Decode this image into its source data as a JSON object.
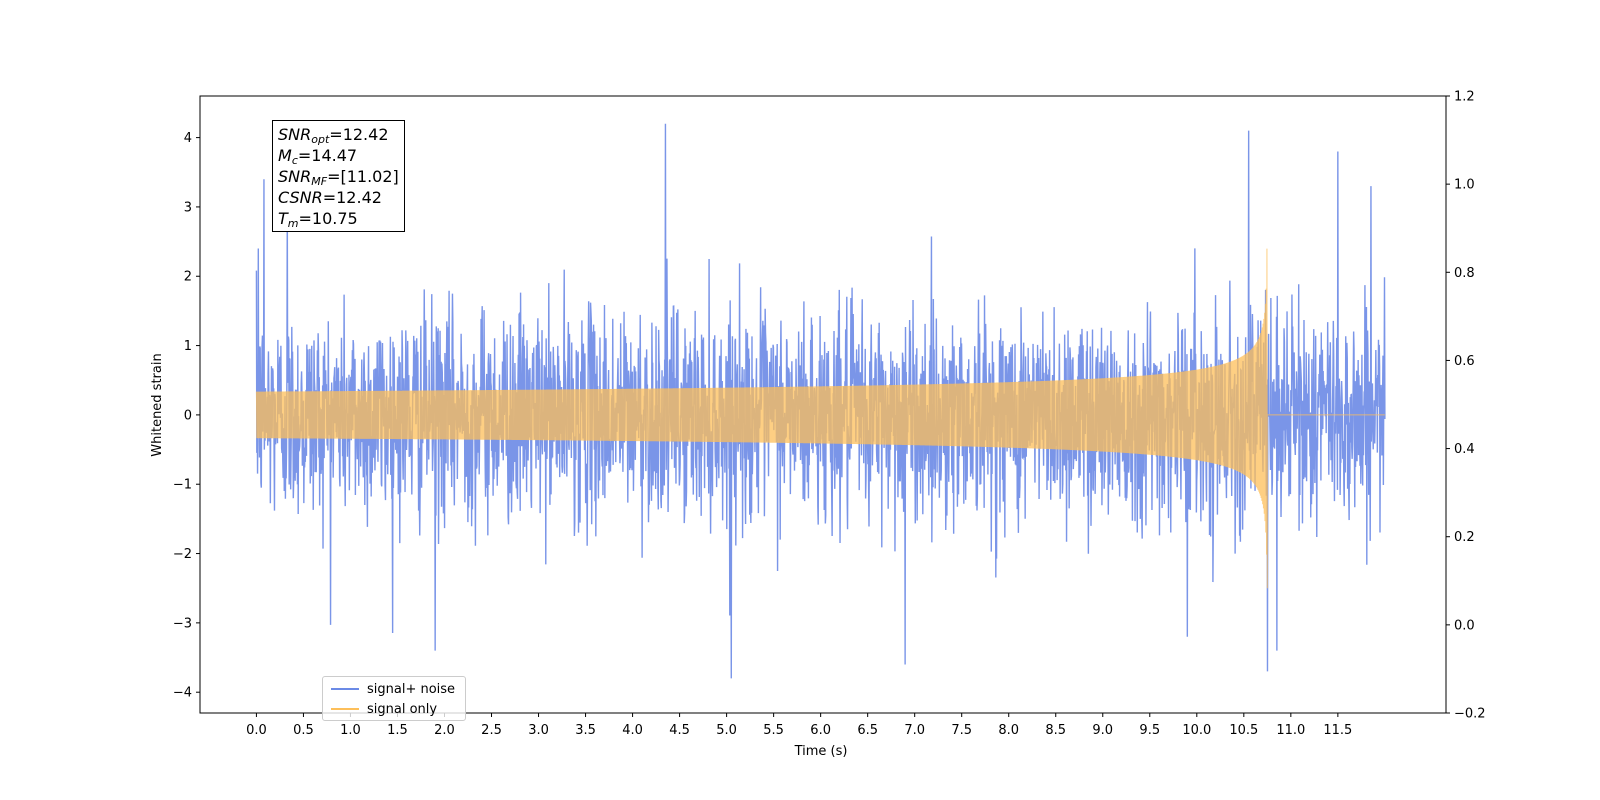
{
  "colors": {
    "noise": "#6b8ae6",
    "signal": "#fdbf5a"
  },
  "annotation": {
    "snr_opt": {
      "sym": "SNR",
      "sub": "opt",
      "value": "=12.42"
    },
    "mc": {
      "sym": "M",
      "sub": "c",
      "value": "=14.47"
    },
    "snr_mf": {
      "sym": "SNR",
      "sub": "MF",
      "value": "=[11.02]"
    },
    "csnr": {
      "sym": "CSNR",
      "value": "=12.42"
    },
    "tm": {
      "sym": "T",
      "sub": "m",
      "value": "=10.75"
    }
  },
  "legend": {
    "noise_label": "signal+ noise",
    "signal_label": "signal only"
  },
  "chart_data": {
    "type": "line",
    "xlabel": "Time (s)",
    "ylabel": "Whitened strain",
    "x_range": [
      0,
      12.0
    ],
    "xlim": [
      -0.6,
      12.65
    ],
    "ylim": [
      -4.3,
      4.6
    ],
    "y2lim": [
      -0.2,
      1.2
    ],
    "grid": false,
    "legend_position": "lower-left",
    "x_ticks": [
      "0.0",
      "0.5",
      "1.0",
      "1.5",
      "2.0",
      "2.5",
      "3.0",
      "3.5",
      "4.0",
      "4.5",
      "5.0",
      "5.5",
      "6.0",
      "6.5",
      "7.0",
      "7.5",
      "8.0",
      "8.5",
      "9.0",
      "9.5",
      "10.0",
      "10.5",
      "11.0",
      "11.5"
    ],
    "y_ticks": [
      "4",
      "3",
      "2",
      "1",
      "0",
      "−1",
      "−2",
      "−3",
      "−4"
    ],
    "y2_ticks": [
      "1.2",
      "1.0",
      "0.8",
      "0.6",
      "0.4",
      "0.2",
      "0.0",
      "−0.2"
    ],
    "series": [
      {
        "name": "signal+ noise",
        "kind": "gaussian-noise",
        "std": 0.75,
        "range": [
          -3.8,
          4.2
        ],
        "spikes": [
          [
            0.02,
            2.4
          ],
          [
            0.08,
            3.4
          ],
          [
            0.33,
            3.0
          ],
          [
            1.9,
            -3.4
          ],
          [
            4.35,
            4.2
          ],
          [
            5.05,
            -3.8
          ],
          [
            6.9,
            -3.6
          ],
          [
            9.9,
            -3.2
          ],
          [
            10.55,
            4.1
          ],
          [
            10.75,
            -3.7
          ],
          [
            10.85,
            -3.4
          ],
          [
            11.5,
            3.8
          ],
          [
            11.85,
            3.3
          ]
        ]
      },
      {
        "name": "signal only",
        "kind": "chirp",
        "merger_time": 10.75,
        "peak_amplitude": 2.5,
        "end_time": 12.0
      }
    ]
  }
}
